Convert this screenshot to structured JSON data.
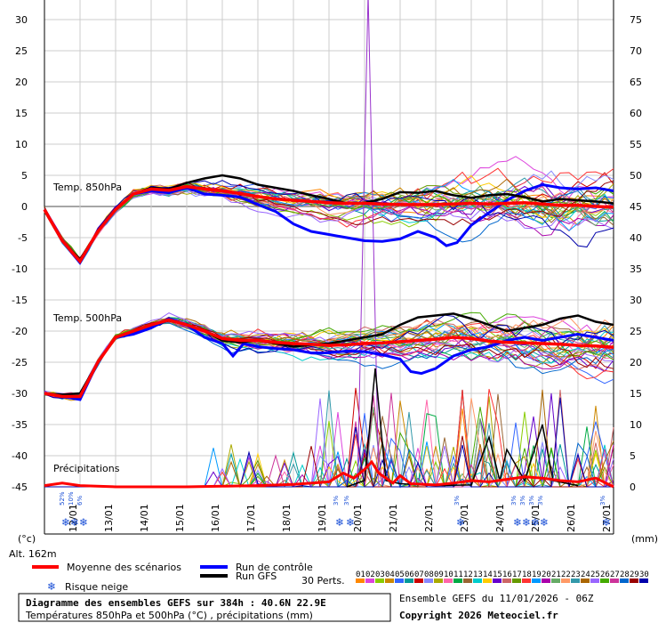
{
  "chart_data": {
    "type": "line",
    "left_axis": {
      "unit": "(°c)",
      "min": -45,
      "max": 30,
      "ticks": [
        30,
        25,
        20,
        15,
        10,
        5,
        0,
        -5,
        -10,
        -15,
        -20,
        -25,
        -30,
        -35,
        -40,
        -45
      ]
    },
    "right_axis": {
      "unit": "(mm)",
      "min": 0,
      "max": 75,
      "ticks": [
        75,
        70,
        65,
        60,
        55,
        50,
        45,
        40,
        35,
        30,
        25,
        20,
        15,
        10,
        5,
        0
      ]
    },
    "altitude_label": "Alt. 162m",
    "dates": [
      "12/01",
      "13/01",
      "14/01",
      "15/01",
      "16/01",
      "17/01",
      "18/01",
      "19/01",
      "20/01",
      "21/01",
      "22/01",
      "23/01",
      "24/01",
      "25/01",
      "26/01",
      "27/01"
    ],
    "panel_labels": {
      "t850": "Temp. 850hPa",
      "t500": "Temp. 500hPa",
      "precip": "Précipitations"
    },
    "snow_risk": [
      {
        "day": 11.6,
        "value": "52%"
      },
      {
        "day": 11.85,
        "value": "10%"
      },
      {
        "day": 12.1,
        "value": "6%"
      },
      {
        "day": 19.3,
        "value": "3%"
      },
      {
        "day": 19.6,
        "value": "3%"
      },
      {
        "day": 22.7,
        "value": "3%"
      },
      {
        "day": 24.3,
        "value": "3%"
      },
      {
        "day": 24.55,
        "value": "3%"
      },
      {
        "day": 24.8,
        "value": "3%"
      },
      {
        "day": 25.05,
        "value": "3%"
      },
      {
        "day": 26.8,
        "value": "3%"
      }
    ],
    "series": [
      {
        "name": "Moyenne des scénarios",
        "color": "#ff0000",
        "t850": [
          [
            11,
            -0.5
          ],
          [
            11.5,
            -5.5
          ],
          [
            12,
            -8.8
          ],
          [
            12.5,
            -4
          ],
          [
            13,
            -0.5
          ],
          [
            13.5,
            2
          ],
          [
            14,
            2.8
          ],
          [
            14.5,
            2.6
          ],
          [
            15,
            3.2
          ],
          [
            15.5,
            2.8
          ],
          [
            16,
            2.5
          ],
          [
            16.5,
            2.1
          ],
          [
            17,
            1.6
          ],
          [
            17.5,
            1.2
          ],
          [
            18,
            1
          ],
          [
            18.5,
            0.8
          ],
          [
            19,
            0.6
          ],
          [
            19.5,
            0.5
          ],
          [
            20,
            0.5
          ],
          [
            20.5,
            0.4
          ],
          [
            21,
            0.3
          ],
          [
            21.5,
            0.3
          ],
          [
            22,
            0.3
          ],
          [
            22.5,
            0.4
          ],
          [
            23,
            0.5
          ],
          [
            23.5,
            0.4
          ],
          [
            24,
            0.5
          ],
          [
            24.5,
            0.6
          ],
          [
            25,
            0.4
          ],
          [
            25.5,
            0.2
          ],
          [
            26,
            0.2
          ],
          [
            26.5,
            0
          ],
          [
            27,
            -0.1
          ]
        ],
        "t500": [
          [
            11,
            -30
          ],
          [
            11.5,
            -30.5
          ],
          [
            12,
            -30.5
          ],
          [
            12.5,
            -25
          ],
          [
            13,
            -21
          ],
          [
            13.5,
            -20
          ],
          [
            14,
            -19
          ],
          [
            14.5,
            -18.2
          ],
          [
            15,
            -19
          ],
          [
            15.5,
            -20
          ],
          [
            16,
            -21.2
          ],
          [
            16.5,
            -21.5
          ],
          [
            17,
            -21.5
          ],
          [
            17.5,
            -21.8
          ],
          [
            18,
            -22
          ],
          [
            18.5,
            -22.1
          ],
          [
            19,
            -22.3
          ],
          [
            19.5,
            -22.2
          ],
          [
            20,
            -22
          ],
          [
            20.5,
            -21.9
          ],
          [
            21,
            -21.7
          ],
          [
            21.5,
            -21.5
          ],
          [
            22,
            -21.3
          ],
          [
            22.5,
            -21
          ],
          [
            23,
            -21.2
          ],
          [
            23.5,
            -21.6
          ],
          [
            24,
            -21.8
          ],
          [
            24.5,
            -21.9
          ],
          [
            25,
            -22
          ],
          [
            25.5,
            -22.1
          ],
          [
            26,
            -22.3
          ],
          [
            26.5,
            -22.4
          ],
          [
            27,
            -22.6
          ]
        ],
        "precip": [
          [
            11,
            0.2
          ],
          [
            11.5,
            0.6
          ],
          [
            12,
            0.2
          ],
          [
            13,
            0
          ],
          [
            15,
            0
          ],
          [
            16,
            0.1
          ],
          [
            17,
            0.2
          ],
          [
            18,
            0.4
          ],
          [
            19,
            0.8
          ],
          [
            19.4,
            2.2
          ],
          [
            19.7,
            1.4
          ],
          [
            20,
            2.8
          ],
          [
            20.2,
            4
          ],
          [
            20.4,
            2.2
          ],
          [
            20.8,
            0.6
          ],
          [
            21,
            1.8
          ],
          [
            21.3,
            0.5
          ],
          [
            22,
            0.3
          ],
          [
            22.5,
            0.6
          ],
          [
            23,
            1
          ],
          [
            23.5,
            0.8
          ],
          [
            24,
            1.2
          ],
          [
            24.5,
            1.6
          ],
          [
            25,
            1.4
          ],
          [
            25.5,
            1.0
          ],
          [
            26,
            0.8
          ],
          [
            26.5,
            1.4
          ],
          [
            27,
            0
          ]
        ]
      },
      {
        "name": "Run de contrôle",
        "color": "#0000ff",
        "t850": [
          [
            11,
            -0.5
          ],
          [
            11.5,
            -5.5
          ],
          [
            12,
            -9
          ],
          [
            12.5,
            -4
          ],
          [
            13,
            -0.5
          ],
          [
            13.5,
            2
          ],
          [
            14,
            2.5
          ],
          [
            14.5,
            2.2
          ],
          [
            15,
            3
          ],
          [
            15.5,
            2
          ],
          [
            16,
            1.8
          ],
          [
            16.5,
            1.5
          ],
          [
            17,
            0.3
          ],
          [
            17.5,
            -0.8
          ],
          [
            18,
            -2.8
          ],
          [
            18.5,
            -4
          ],
          [
            19,
            -4.5
          ],
          [
            19.5,
            -5
          ],
          [
            20,
            -5.5
          ],
          [
            20.5,
            -5.6
          ],
          [
            21,
            -5.2
          ],
          [
            21.5,
            -4
          ],
          [
            22,
            -5
          ],
          [
            22.3,
            -6.3
          ],
          [
            22.6,
            -5.8
          ],
          [
            23,
            -3
          ],
          [
            23.5,
            -1
          ],
          [
            24,
            1
          ],
          [
            24.5,
            2.5
          ],
          [
            25,
            3.5
          ],
          [
            25.5,
            3
          ],
          [
            26,
            2.8
          ],
          [
            26.5,
            3
          ],
          [
            27,
            2.5
          ]
        ],
        "t500": [
          [
            11,
            -30
          ],
          [
            11.5,
            -30.5
          ],
          [
            12,
            -31
          ],
          [
            12.5,
            -25
          ],
          [
            13,
            -21
          ],
          [
            13.5,
            -20.5
          ],
          [
            14,
            -19.5
          ],
          [
            14.5,
            -18
          ],
          [
            15,
            -19
          ],
          [
            15.5,
            -21
          ],
          [
            16,
            -22
          ],
          [
            16.3,
            -24
          ],
          [
            16.6,
            -22
          ],
          [
            17,
            -22.5
          ],
          [
            17.5,
            -22.8
          ],
          [
            18,
            -23
          ],
          [
            18.5,
            -23.5
          ],
          [
            19,
            -23.5
          ],
          [
            19.5,
            -23.2
          ],
          [
            20,
            -23.3
          ],
          [
            20.5,
            -23.8
          ],
          [
            21,
            -24.5
          ],
          [
            21.3,
            -26.5
          ],
          [
            21.6,
            -26.8
          ],
          [
            22,
            -26
          ],
          [
            22.5,
            -24
          ],
          [
            23,
            -23
          ],
          [
            23.5,
            -22.5
          ],
          [
            24,
            -21.5
          ],
          [
            24.5,
            -21
          ],
          [
            25,
            -21.5
          ],
          [
            25.5,
            -21
          ],
          [
            26,
            -20.5
          ],
          [
            26.5,
            -21
          ],
          [
            27,
            -21.5
          ]
        ],
        "precip": []
      },
      {
        "name": "Run GFS",
        "color": "#000000",
        "t850": [
          [
            11,
            -0.5
          ],
          [
            11.5,
            -5.5
          ],
          [
            12,
            -8.5
          ],
          [
            12.5,
            -4
          ],
          [
            13,
            -0.5
          ],
          [
            13.5,
            2
          ],
          [
            14,
            3
          ],
          [
            14.5,
            2.8
          ],
          [
            15,
            3.8
          ],
          [
            15.5,
            4.5
          ],
          [
            16,
            5
          ],
          [
            16.5,
            4.5
          ],
          [
            17,
            3.5
          ],
          [
            17.5,
            3
          ],
          [
            18,
            2.5
          ],
          [
            18.5,
            1.8
          ],
          [
            19,
            1.2
          ],
          [
            19.5,
            0.5
          ],
          [
            20,
            0.6
          ],
          [
            20.5,
            1.2
          ],
          [
            21,
            2.3
          ],
          [
            21.5,
            2.2
          ],
          [
            22,
            2.5
          ],
          [
            22.5,
            1.8
          ],
          [
            23,
            1.4
          ],
          [
            23.5,
            1.8
          ],
          [
            24,
            2
          ],
          [
            24.5,
            1.5
          ],
          [
            25,
            0.8
          ],
          [
            25.5,
            1.2
          ],
          [
            26,
            1
          ],
          [
            26.5,
            0.8
          ],
          [
            27,
            0.5
          ]
        ],
        "t500": [
          [
            11,
            -30
          ],
          [
            11.5,
            -30.2
          ],
          [
            12,
            -30
          ],
          [
            12.5,
            -25
          ],
          [
            13,
            -21
          ],
          [
            13.5,
            -20
          ],
          [
            14,
            -19
          ],
          [
            14.5,
            -18.3
          ],
          [
            15,
            -19
          ],
          [
            15.5,
            -20
          ],
          [
            16,
            -21.5
          ],
          [
            16.5,
            -21.8
          ],
          [
            17,
            -21.5
          ],
          [
            17.5,
            -22
          ],
          [
            18,
            -22.5
          ],
          [
            18.5,
            -22.2
          ],
          [
            19,
            -22
          ],
          [
            19.5,
            -21.5
          ],
          [
            20,
            -21
          ],
          [
            20.5,
            -20.5
          ],
          [
            21,
            -19
          ],
          [
            21.5,
            -17.8
          ],
          [
            22,
            -17.5
          ],
          [
            22.5,
            -17.2
          ],
          [
            23,
            -18
          ],
          [
            23.5,
            -19
          ],
          [
            24,
            -20
          ],
          [
            24.5,
            -19.5
          ],
          [
            25,
            -19
          ],
          [
            25.5,
            -18
          ],
          [
            26,
            -17.5
          ],
          [
            26.5,
            -18.5
          ],
          [
            27,
            -19
          ]
        ],
        "precip": [
          [
            19.5,
            0
          ],
          [
            20,
            1
          ],
          [
            20.3,
            19
          ],
          [
            20.6,
            1
          ],
          [
            21,
            0.5
          ],
          [
            22,
            0.2
          ],
          [
            23,
            0.3
          ],
          [
            23.5,
            8
          ],
          [
            23.8,
            1
          ],
          [
            24,
            6
          ],
          [
            24.5,
            1
          ],
          [
            25,
            10
          ],
          [
            25.3,
            1
          ],
          [
            26,
            0.2
          ]
        ]
      }
    ],
    "perturbations": {
      "count_label": "30 Perts.",
      "colors": [
        "#ff8800",
        "#dd44dd",
        "#88cc00",
        "#cc8800",
        "#3366ff",
        "#009999",
        "#cc0000",
        "#8888ff",
        "#aaaa00",
        "#ff66aa",
        "#00aa44",
        "#996633",
        "#00cccc",
        "#ffcc00",
        "#6600cc",
        "#cc6666",
        "#669900",
        "#ff3333",
        "#0099ff",
        "#aa00aa",
        "#66aa66",
        "#ff9966",
        "#3399aa",
        "#aa6600",
        "#9966ff",
        "#44aa00",
        "#cc3399",
        "#0066cc",
        "#990000",
        "#0000aa"
      ],
      "labels": [
        "01",
        "02",
        "03",
        "04",
        "05",
        "06",
        "07",
        "08",
        "09",
        "10",
        "11",
        "12",
        "13",
        "14",
        "15",
        "16",
        "17",
        "18",
        "19",
        "20",
        "21",
        "22",
        "23",
        "24",
        "25",
        "26",
        "27",
        "28",
        "29",
        "30"
      ],
      "spike": {
        "day": 20.1,
        "value": 75,
        "color": "#9933cc"
      }
    }
  },
  "legend": {
    "mean": "Moyenne des scénarios",
    "control": "Run de contrôle",
    "gfs": "Run GFS",
    "snow": "Risque neige",
    "perts": "30 Perts."
  },
  "footer": {
    "title": "Diagramme des ensembles GEFS sur 384h : 40.6N 22.9E",
    "subtitle": "Températures 850hPa et 500hPa (°C) , précipitations (mm)",
    "run": "Ensemble GEFS du 11/01/2026 - 06Z",
    "copyright": "Copyright 2026 Meteociel.fr"
  }
}
